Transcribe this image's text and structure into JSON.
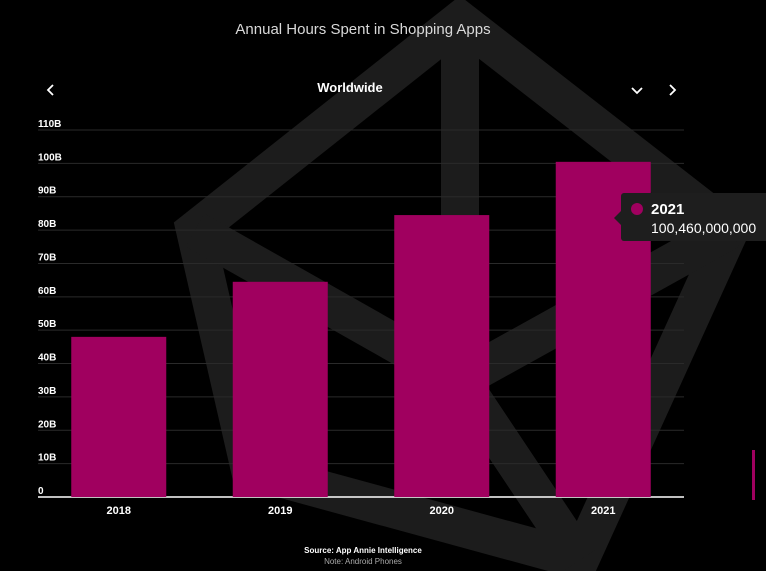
{
  "header": {
    "title": "Annual Hours Spent in Shopping Apps",
    "selector_label": "Worldwide"
  },
  "icons": {
    "prev": "chevron-left-icon",
    "dropdown": "chevron-down-icon",
    "next": "chevron-right-icon"
  },
  "colors": {
    "bar": "#a0005f",
    "background": "#000000",
    "gridline": "#2a2a2a",
    "tooltip_bg": "#1e1e1e"
  },
  "chart_data": {
    "type": "bar",
    "title": "Annual Hours Spent in Shopping Apps",
    "categories": [
      "2018",
      "2019",
      "2020",
      "2021"
    ],
    "values": [
      48000000000,
      64500000000,
      84500000000,
      100460000000
    ],
    "ylim": [
      0,
      110000000000
    ],
    "yticks": [
      "0",
      "10B",
      "20B",
      "30B",
      "40B",
      "50B",
      "60B",
      "70B",
      "80B",
      "90B",
      "100B",
      "110B"
    ],
    "grid": true,
    "legend": "none"
  },
  "tooltip": {
    "year": "2021",
    "value": "100,460,000,000"
  },
  "footer": {
    "source": "Source: App Annie Intelligence",
    "note": "Note: Android Phones"
  }
}
